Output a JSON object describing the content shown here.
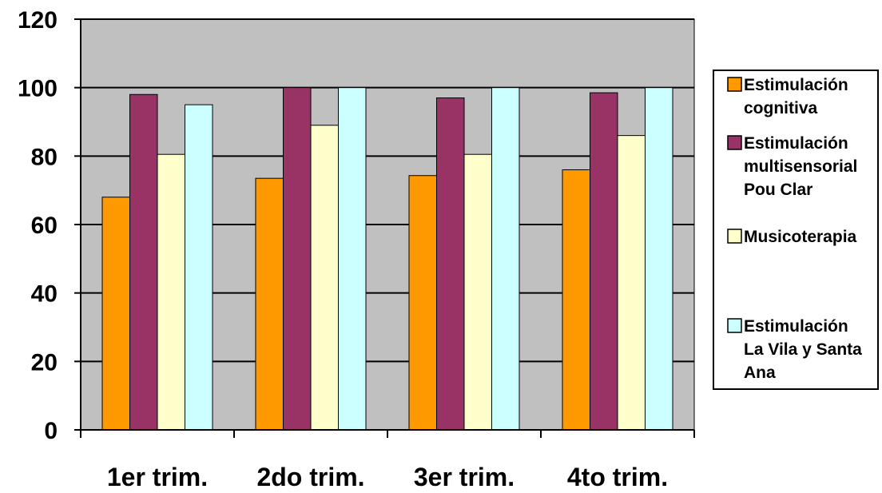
{
  "chart_data": {
    "type": "bar",
    "title": "",
    "xlabel": "",
    "ylabel": "",
    "ylim": [
      0,
      120
    ],
    "yticks": [
      0,
      20,
      40,
      60,
      80,
      100,
      120
    ],
    "grid": true,
    "legend_position": "right",
    "categories": [
      "1er trim.",
      "2do trim.",
      "3er trim.",
      "4to trim."
    ],
    "series": [
      {
        "name": "Estimulación cognitiva",
        "label_lines": [
          "Estimulación",
          "cognitiva"
        ],
        "color": "#FF9900",
        "values": [
          68,
          73.5,
          74.3,
          76
        ]
      },
      {
        "name": "Estimulación multisensorial Pou Clar",
        "label_lines": [
          "Estimulación",
          "multisensorial",
          "Pou Clar"
        ],
        "color": "#993366",
        "values": [
          98,
          100,
          97,
          98.5
        ]
      },
      {
        "name": "Musicoterapia",
        "label_lines": [
          "Musicoterapia"
        ],
        "color": "#FFFFCC",
        "values": [
          80.5,
          89,
          80.5,
          86
        ]
      },
      {
        "name": "Estimulación La Vila y Santa Ana",
        "label_lines": [
          "Estimulación",
          "La Vila y Santa",
          "Ana"
        ],
        "color": "#CCFFFF",
        "values": [
          95,
          100,
          100,
          100
        ]
      }
    ],
    "plot_background": "#C0C0C0"
  }
}
